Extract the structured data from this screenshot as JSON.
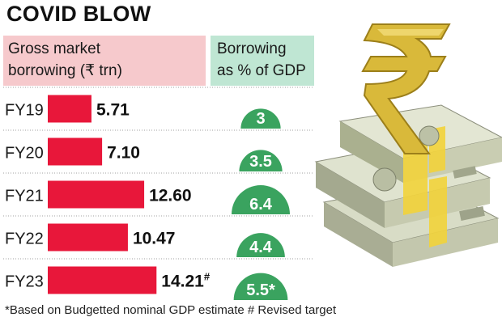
{
  "title": "COVID BLOW",
  "header_left": {
    "line1": "Gross market",
    "line2": "borrowing (₹ trn)"
  },
  "header_right": {
    "line1": "Borrowing",
    "line2": "as % of GDP"
  },
  "footnote": "*Based on Budgetted nominal GDP estimate # Revised target",
  "colors": {
    "bar": "#e8173a",
    "semi": "#3aa35f",
    "header_left_bg": "#f6c9cc",
    "header_right_bg": "#bfe6d3"
  },
  "chart_data": {
    "type": "bar",
    "categories": [
      "FY19",
      "FY20",
      "FY21",
      "FY22",
      "FY23"
    ],
    "series": [
      {
        "name": "Gross market borrowing (₹ trn)",
        "values": [
          5.71,
          7.1,
          12.6,
          10.47,
          14.21
        ],
        "labels": [
          "5.71",
          "7.10",
          "12.60",
          "10.47",
          "14.21"
        ],
        "label_marks": [
          "",
          "",
          "",
          "",
          "#"
        ]
      },
      {
        "name": "Borrowing as % of GDP",
        "values": [
          3,
          3.5,
          6.4,
          4.4,
          5.5
        ],
        "labels": [
          "3",
          "3.5",
          "6.4",
          "4.4",
          "5.5*"
        ]
      }
    ],
    "orientation": "horizontal",
    "grid": false,
    "legend": "none"
  },
  "illustration": {
    "icon": "rupee-symbol-icon",
    "secondary_icon": "currency-notes-bundle-icon",
    "symbol_color": "#d9b93a"
  }
}
